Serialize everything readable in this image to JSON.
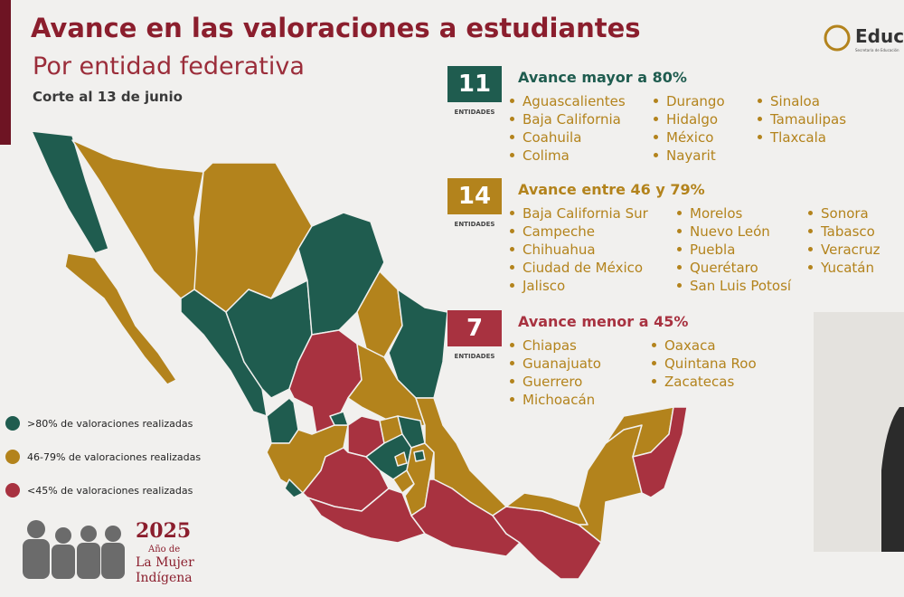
{
  "header": {
    "title": "Avance en las valoraciones a estudiantes",
    "subtitle": "Por entidad federativa",
    "date": "Corte al 13 de junio"
  },
  "logo": {
    "name": "Educa",
    "subtitle": "Secretaría de Educación"
  },
  "groups": [
    {
      "count": 11,
      "unit": "ENTIDADES",
      "heading": "Avance mayor a 80%",
      "columns": [
        [
          "Aguascalientes",
          "Baja California",
          "Coahuila",
          "Colima"
        ],
        [
          "Durango",
          "Hidalgo",
          "México",
          "Nayarit"
        ],
        [
          "Sinaloa",
          "Tamaulipas",
          "Tlaxcala"
        ]
      ]
    },
    {
      "count": 14,
      "unit": "ENTIDADES",
      "heading": "Avance entre 46 y 79%",
      "columns": [
        [
          "Baja California Sur",
          "Campeche",
          "Chihuahua",
          "Ciudad de México",
          "Jalisco"
        ],
        [
          "Morelos",
          "Nuevo León",
          "Puebla",
          "Querétaro",
          "San Luis Potosí"
        ],
        [
          "Sonora",
          "Tabasco",
          "Veracruz",
          "Yucatán"
        ]
      ]
    },
    {
      "count": 7,
      "unit": "ENTIDADES",
      "heading": "Avance menor a 45%",
      "columns": [
        [
          "Chiapas",
          "Guanajuato",
          "Guerrero",
          "Michoacán"
        ],
        [
          "Oaxaca",
          "Quintana Roo",
          "Zacatecas"
        ]
      ]
    }
  ],
  "legend": [
    ">80% de valoraciones realizadas",
    "46-79% de valoraciones realizadas",
    "<45% de valoraciones realizadas"
  ],
  "footer": {
    "year": "2025",
    "line1": "Año de",
    "line2": "La Mujer",
    "line3": "Indígena"
  }
}
